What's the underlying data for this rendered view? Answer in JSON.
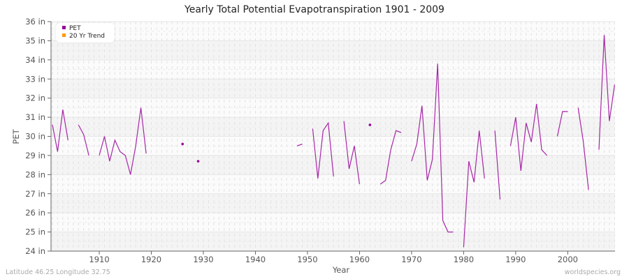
{
  "title": "Yearly Total Potential Evapotranspiration 1901 - 2009",
  "legend": [
    {
      "label": "PET",
      "color": "#990099"
    },
    {
      "label": "20 Yr Trend",
      "color": "#ff9900"
    }
  ],
  "footer": {
    "left": "Latitude 46.25 Longitude 32.75",
    "right": "worldspecies.org"
  },
  "chart_data": {
    "type": "line",
    "title": "Yearly Total Potential Evapotranspiration 1901 - 2009",
    "xlabel": "Year",
    "ylabel": "PET",
    "xlim": [
      1901,
      2009
    ],
    "ylim": [
      24,
      36
    ],
    "x_ticks": [
      "1910",
      "1920",
      "1930",
      "1940",
      "1950",
      "1960",
      "1970",
      "1980",
      "1990",
      "2000"
    ],
    "y_ticks": [
      "24 in",
      "25 in",
      "26 in",
      "27 in",
      "28 in",
      "29 in",
      "30 in",
      "31 in",
      "32 in",
      "33 in",
      "34 in",
      "35 in",
      "36 in"
    ],
    "grid": true,
    "legend_position": "top-left",
    "series": [
      {
        "name": "PET",
        "color": "#990099",
        "unit": "in",
        "points": [
          [
            1901,
            30.6
          ],
          [
            1902,
            29.2
          ],
          [
            1903,
            31.4
          ],
          [
            1904,
            29.8
          ],
          [
            1905,
            null
          ],
          [
            1906,
            30.6
          ],
          [
            1907,
            30.1
          ],
          [
            1908,
            29.0
          ],
          [
            1909,
            null
          ],
          [
            1910,
            29.0
          ],
          [
            1911,
            30.0
          ],
          [
            1912,
            28.7
          ],
          [
            1913,
            29.8
          ],
          [
            1914,
            29.2
          ],
          [
            1915,
            29.0
          ],
          [
            1916,
            28.0
          ],
          [
            1917,
            29.5
          ],
          [
            1918,
            31.5
          ],
          [
            1919,
            29.1
          ],
          [
            1920,
            null
          ],
          [
            1926,
            29.6
          ],
          [
            1927,
            null
          ],
          [
            1929,
            28.7
          ],
          [
            1930,
            null
          ],
          [
            1948,
            29.5
          ],
          [
            1949,
            29.6
          ],
          [
            1950,
            null
          ],
          [
            1951,
            30.4
          ],
          [
            1952,
            27.8
          ],
          [
            1953,
            30.3
          ],
          [
            1954,
            30.7
          ],
          [
            1955,
            27.9
          ],
          [
            1956,
            null
          ],
          [
            1957,
            30.8
          ],
          [
            1958,
            28.3
          ],
          [
            1959,
            29.5
          ],
          [
            1960,
            27.5
          ],
          [
            1961,
            null
          ],
          [
            1962,
            30.6
          ],
          [
            1963,
            null
          ],
          [
            1964,
            27.5
          ],
          [
            1965,
            27.7
          ],
          [
            1966,
            29.3
          ],
          [
            1967,
            30.3
          ],
          [
            1968,
            30.2
          ],
          [
            1969,
            null
          ],
          [
            1970,
            28.7
          ],
          [
            1971,
            29.6
          ],
          [
            1972,
            31.6
          ],
          [
            1973,
            27.7
          ],
          [
            1974,
            28.8
          ],
          [
            1975,
            33.8
          ],
          [
            1976,
            25.6
          ],
          [
            1977,
            25.0
          ],
          [
            1978,
            25.0
          ],
          [
            1979,
            null
          ],
          [
            1980,
            24.2
          ],
          [
            1981,
            28.7
          ],
          [
            1982,
            27.6
          ],
          [
            1983,
            30.3
          ],
          [
            1984,
            27.8
          ],
          [
            1985,
            null
          ],
          [
            1986,
            30.3
          ],
          [
            1987,
            26.7
          ],
          [
            1988,
            null
          ],
          [
            1989,
            29.5
          ],
          [
            1990,
            31.0
          ],
          [
            1991,
            28.2
          ],
          [
            1992,
            30.7
          ],
          [
            1993,
            29.7
          ],
          [
            1994,
            31.7
          ],
          [
            1995,
            29.3
          ],
          [
            1996,
            29.0
          ],
          [
            1997,
            null
          ],
          [
            1998,
            30.0
          ],
          [
            1999,
            31.3
          ],
          [
            2000,
            31.3
          ],
          [
            2001,
            null
          ],
          [
            2002,
            31.5
          ],
          [
            2003,
            29.7
          ],
          [
            2004,
            27.2
          ],
          [
            2005,
            null
          ],
          [
            2006,
            29.3
          ],
          [
            2007,
            35.3
          ],
          [
            2008,
            30.8
          ],
          [
            2009,
            32.7
          ]
        ]
      },
      {
        "name": "20 Yr Trend",
        "color": "#ff9900",
        "points": []
      }
    ]
  }
}
